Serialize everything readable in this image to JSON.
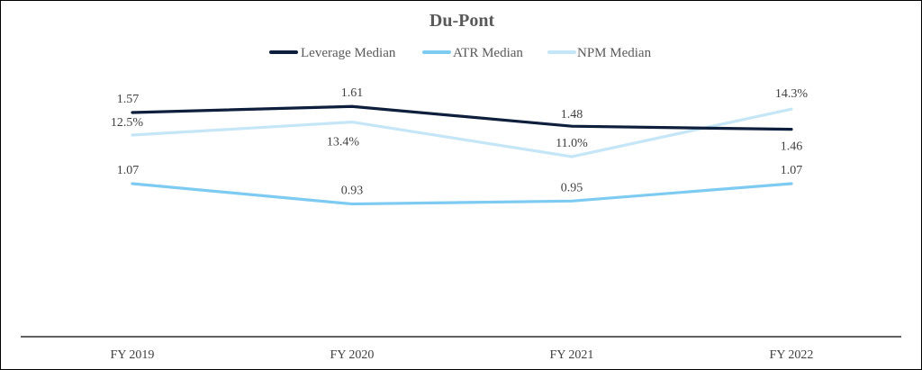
{
  "chart_data": {
    "type": "line",
    "title": "Du-Pont",
    "xlabel": "",
    "ylabel": "",
    "categories": [
      "FY 2019",
      "FY 2020",
      "FY 2021",
      "FY 2022"
    ],
    "legend_position": "top",
    "grid": false,
    "series": [
      {
        "name": "Leverage Median",
        "values": [
          1.57,
          1.61,
          1.48,
          1.46
        ],
        "labels": [
          "1.57",
          "1.61",
          "1.48",
          "1.46"
        ],
        "color": "#0d1f3c"
      },
      {
        "name": "ATR Median",
        "values": [
          1.07,
          0.93,
          0.95,
          1.07
        ],
        "labels": [
          "1.07",
          "0.93",
          "0.95",
          "1.07"
        ],
        "color": "#7ecbf2"
      },
      {
        "name": "NPM Median",
        "values": [
          12.5,
          13.4,
          11.0,
          14.3
        ],
        "labels": [
          "12.5%",
          "13.4%",
          "11.0%",
          "14.3%"
        ],
        "color": "#c5e6f7"
      }
    ]
  }
}
